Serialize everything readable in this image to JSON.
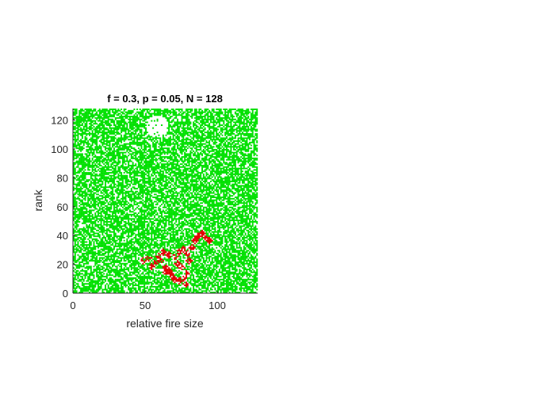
{
  "chart_data": {
    "type": "heatmap",
    "title": "f = 0.3, p = 0.05, N = 128",
    "xlabel": "relative fire size",
    "ylabel": "rank",
    "xlim": [
      0,
      128
    ],
    "ylim": [
      0,
      128
    ],
    "xticks": [
      0,
      50,
      100
    ],
    "yticks": [
      0,
      20,
      40,
      60,
      80,
      100,
      120
    ],
    "xtick_labels": [
      "0",
      "50",
      "100"
    ],
    "ytick_labels": [
      "0",
      "20",
      "40",
      "60",
      "80",
      "100",
      "120"
    ],
    "grid_size": 128,
    "states": [
      "empty",
      "tree",
      "burning"
    ],
    "colors": {
      "empty": "#ffffff",
      "tree": "#00e000",
      "burning": "#e00000"
    },
    "tree_density": 0.68,
    "empty_patches": [
      {
        "cx": 58,
        "cy": 115,
        "r": 8
      }
    ],
    "fire_cluster": [
      [
        48,
        22
      ],
      [
        52,
        24
      ],
      [
        56,
        20
      ],
      [
        60,
        22
      ],
      [
        63,
        18
      ],
      [
        66,
        15
      ],
      [
        68,
        12
      ],
      [
        70,
        9
      ],
      [
        73,
        8
      ],
      [
        76,
        10
      ],
      [
        78,
        13
      ],
      [
        75,
        17
      ],
      [
        72,
        20
      ],
      [
        70,
        25
      ],
      [
        73,
        28
      ],
      [
        76,
        30
      ],
      [
        79,
        27
      ],
      [
        82,
        31
      ],
      [
        84,
        36
      ],
      [
        86,
        39
      ],
      [
        89,
        41
      ],
      [
        92,
        38
      ],
      [
        94,
        36
      ],
      [
        80,
        22
      ],
      [
        66,
        26
      ],
      [
        62,
        28
      ],
      [
        59,
        25
      ],
      [
        54,
        18
      ],
      [
        64,
        14
      ],
      [
        78,
        6
      ]
    ]
  }
}
